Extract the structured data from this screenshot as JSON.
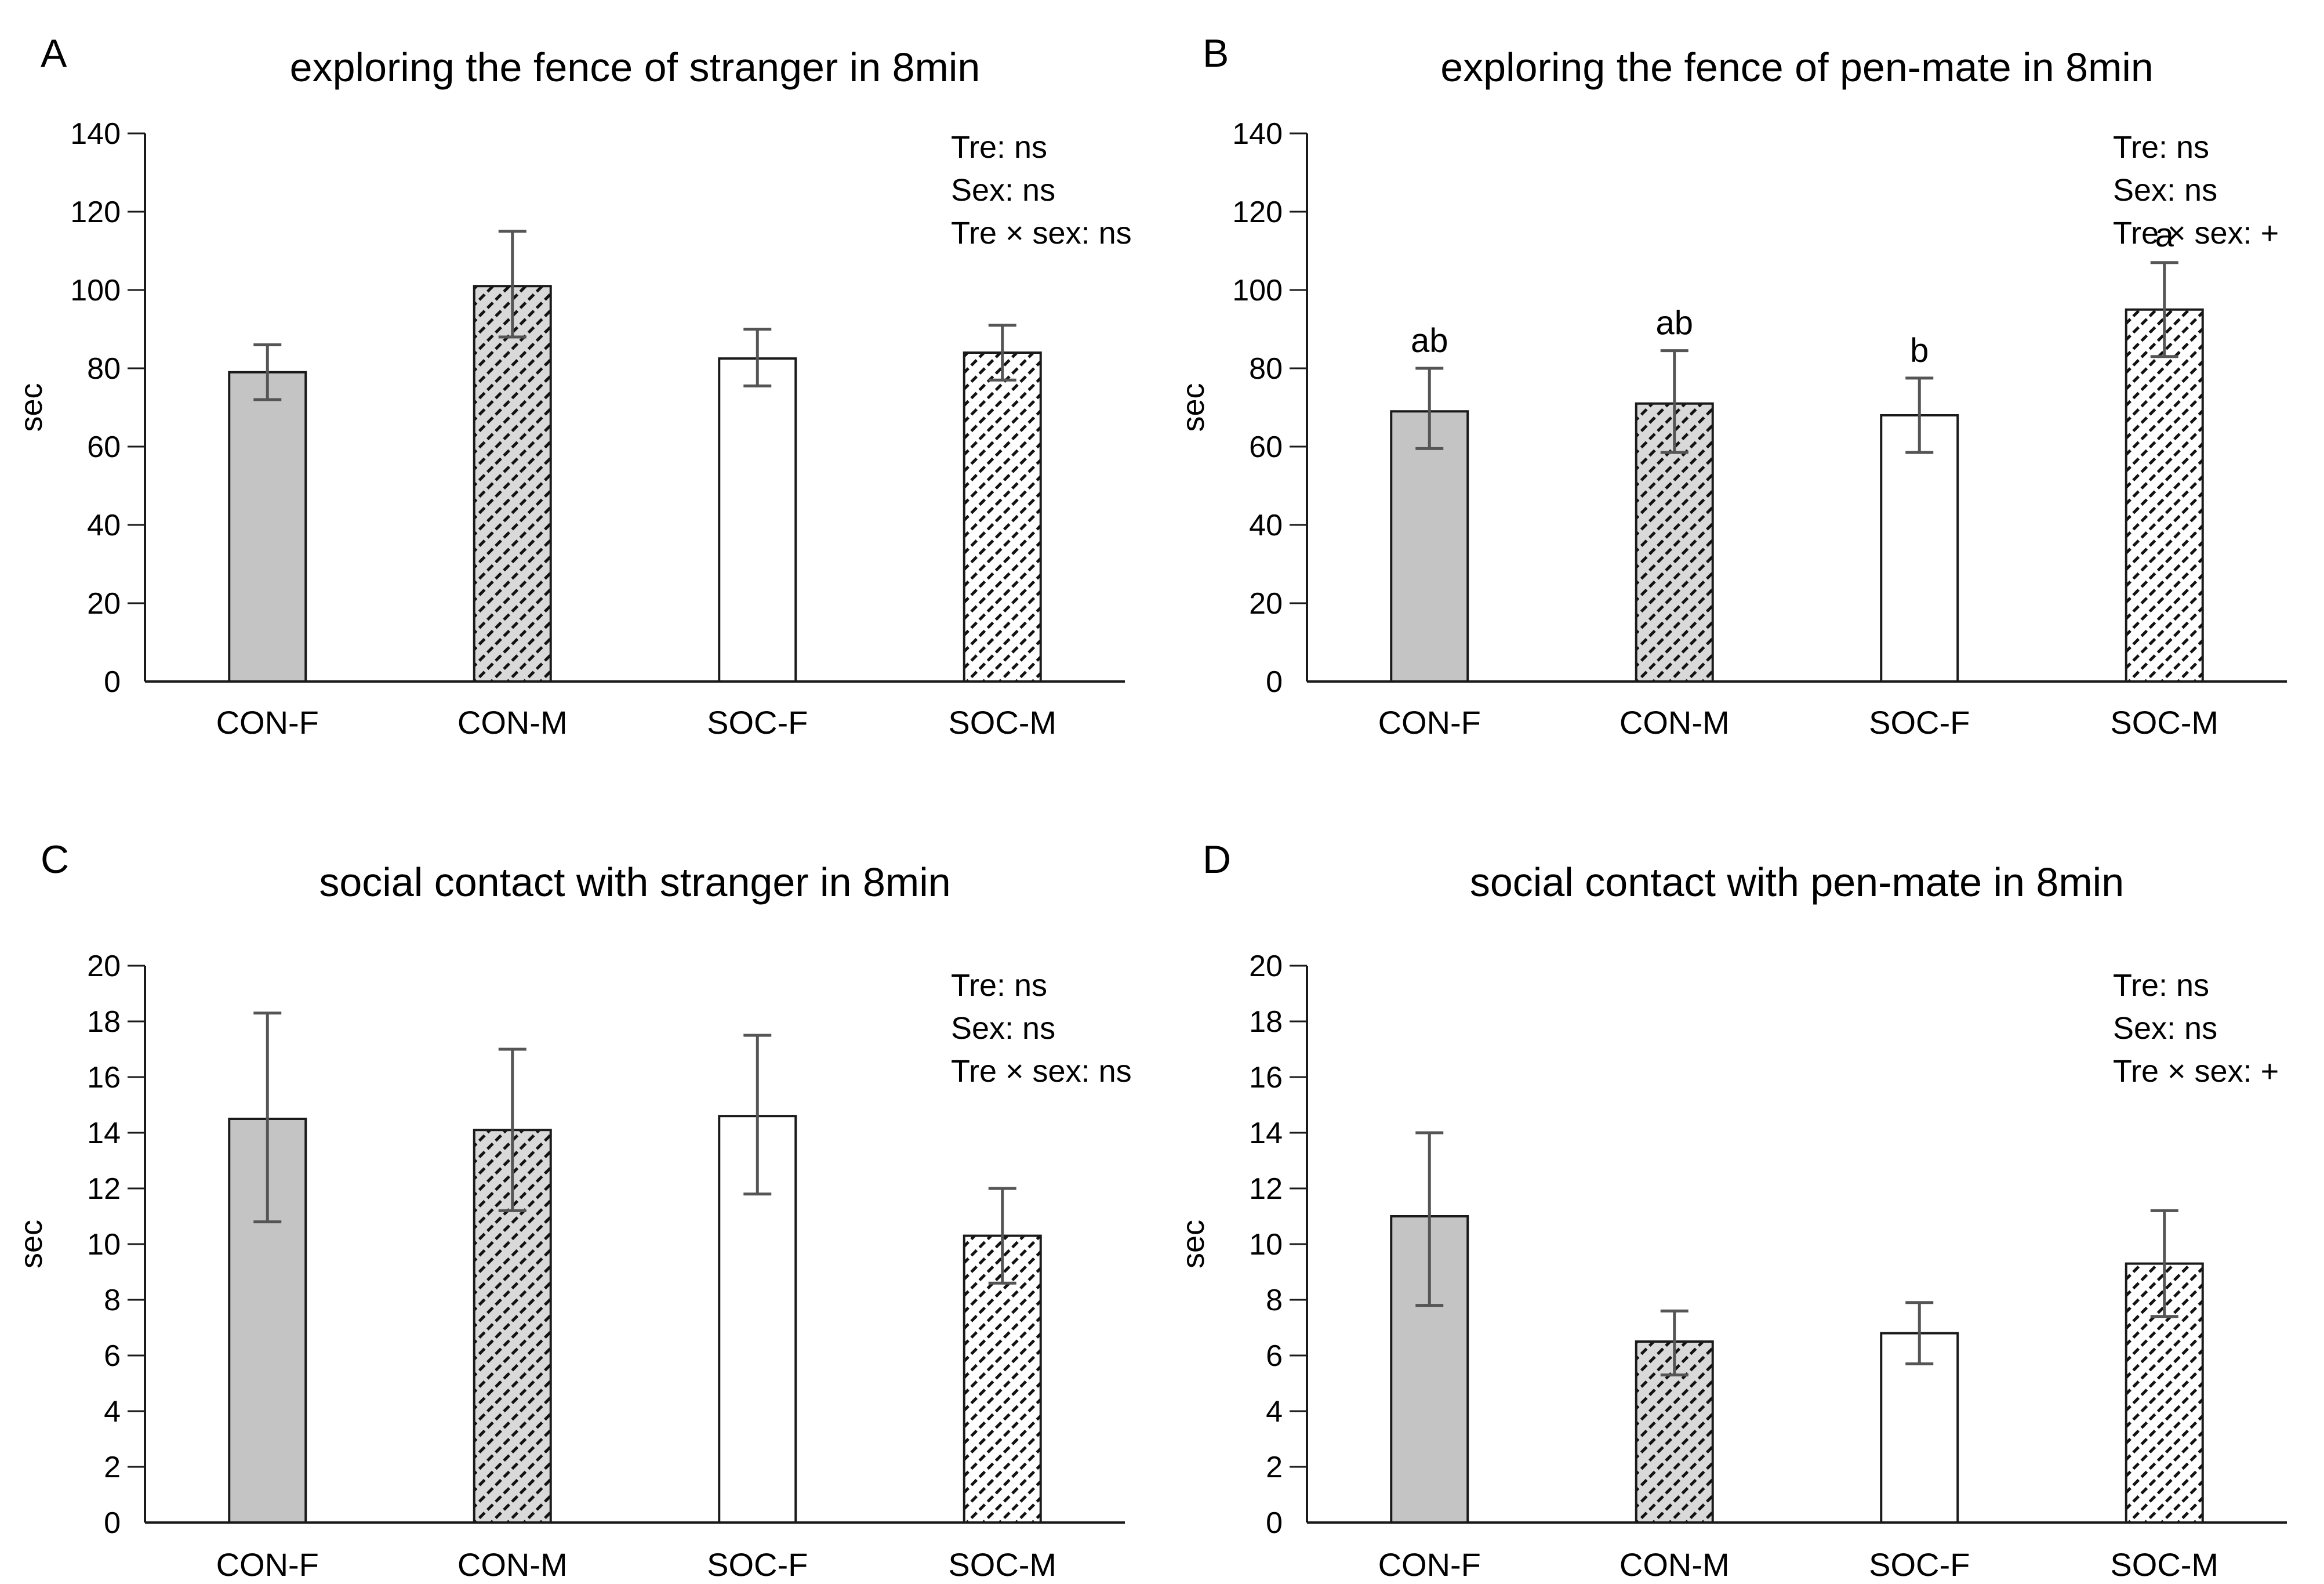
{
  "figure": {
    "background": "#ffffff",
    "panel_order": [
      "A",
      "B",
      "C",
      "D"
    ]
  },
  "colors": {
    "background": "#ffffff",
    "text": "#000000",
    "axis": "#1a1a1a",
    "bar_border": "#1a1a1a",
    "solid_gray_fill": "#c4c4c4",
    "hatch_background_gray": "#d9d9d9",
    "hatch_background_white": "#ffffff",
    "hatch_line": "#111111",
    "error_bar": "#555555"
  },
  "chart_data": [
    {
      "type": "bar",
      "panel_label": "A",
      "title": "exploring the fence of stranger in 8min",
      "ylabel": "sec",
      "ylim": [
        0,
        140
      ],
      "yticks": [
        0,
        20,
        40,
        60,
        80,
        100,
        120,
        140
      ],
      "grid": "off",
      "stats_lines": [
        "Tre: ns",
        "Sex: ns",
        "Tre × sex: ns"
      ],
      "categories": [
        "CON-F",
        "CON-M",
        "SOC-F",
        "SOC-M"
      ],
      "values": [
        79,
        101,
        82.5,
        84
      ],
      "error_high": [
        86,
        115,
        90,
        91
      ],
      "error_low": [
        72,
        88,
        75.5,
        77
      ],
      "sig_letters": [
        "",
        "",
        "",
        ""
      ],
      "bar_styles": [
        "solid-gray",
        "hatch-on-gray",
        "open-white",
        "hatch-on-white"
      ]
    },
    {
      "type": "bar",
      "panel_label": "B",
      "title": "exploring the fence of pen-mate in 8min",
      "ylabel": "sec",
      "ylim": [
        0,
        140
      ],
      "yticks": [
        0,
        20,
        40,
        60,
        80,
        100,
        120,
        140
      ],
      "grid": "off",
      "stats_lines": [
        "Tre: ns",
        "Sex: ns",
        "Tre × sex: +"
      ],
      "categories": [
        "CON-F",
        "CON-M",
        "SOC-F",
        "SOC-M"
      ],
      "values": [
        69,
        71,
        68,
        95
      ],
      "error_high": [
        80,
        84.5,
        77.5,
        107
      ],
      "error_low": [
        59.5,
        58.5,
        58.5,
        83
      ],
      "sig_letters": [
        "ab",
        "ab",
        "b",
        "a"
      ],
      "bar_styles": [
        "solid-gray",
        "hatch-on-gray",
        "open-white",
        "hatch-on-white"
      ]
    },
    {
      "type": "bar",
      "panel_label": "C",
      "title": "social contact with stranger in 8min",
      "ylabel": "sec",
      "ylim": [
        0,
        20
      ],
      "yticks": [
        0,
        2,
        4,
        6,
        8,
        10,
        12,
        14,
        16,
        18,
        20
      ],
      "grid": "off",
      "stats_lines": [
        "Tre: ns",
        "Sex: ns",
        "Tre × sex: ns"
      ],
      "categories": [
        "CON-F",
        "CON-M",
        "SOC-F",
        "SOC-M"
      ],
      "values": [
        14.5,
        14.1,
        14.6,
        10.3
      ],
      "error_high": [
        18.3,
        17.0,
        17.5,
        12.0
      ],
      "error_low": [
        10.8,
        11.2,
        11.8,
        8.6
      ],
      "sig_letters": [
        "",
        "",
        "",
        ""
      ],
      "bar_styles": [
        "solid-gray",
        "hatch-on-gray",
        "open-white",
        "hatch-on-white"
      ]
    },
    {
      "type": "bar",
      "panel_label": "D",
      "title": "social contact with pen-mate in 8min",
      "ylabel": "sec",
      "ylim": [
        0,
        20
      ],
      "yticks": [
        0,
        2,
        4,
        6,
        8,
        10,
        12,
        14,
        16,
        18,
        20
      ],
      "grid": "off",
      "stats_lines": [
        "Tre: ns",
        "Sex: ns",
        "Tre × sex: +"
      ],
      "categories": [
        "CON-F",
        "CON-M",
        "SOC-F",
        "SOC-M"
      ],
      "values": [
        11.0,
        6.5,
        6.8,
        9.3
      ],
      "error_high": [
        14.0,
        7.6,
        7.9,
        11.2
      ],
      "error_low": [
        7.8,
        5.3,
        5.7,
        7.4
      ],
      "sig_letters": [
        "",
        "",
        "",
        ""
      ],
      "bar_styles": [
        "solid-gray",
        "hatch-on-gray",
        "open-white",
        "hatch-on-white"
      ]
    }
  ]
}
